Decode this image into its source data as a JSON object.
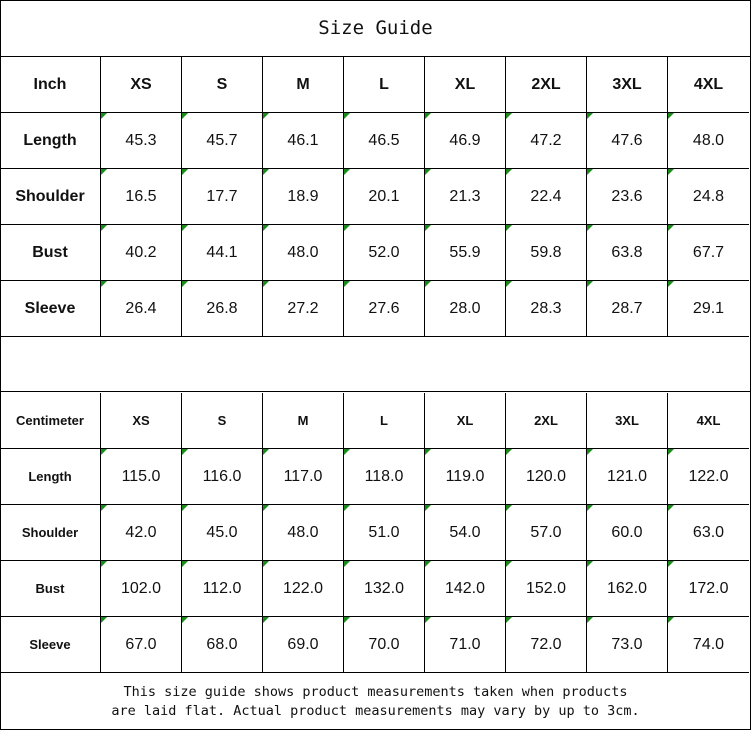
{
  "title": "Size Guide",
  "accent_color": "#1a8a1a",
  "inch_table": {
    "headers": [
      "Inch",
      "XS",
      "S",
      "M",
      "L",
      "XL",
      "2XL",
      "3XL",
      "4XL"
    ],
    "rows": [
      [
        "Length",
        "45.3",
        "45.7",
        "46.1",
        "46.5",
        "46.9",
        "47.2",
        "47.6",
        "48.0"
      ],
      [
        "Shoulder",
        "16.5",
        "17.7",
        "18.9",
        "20.1",
        "21.3",
        "22.4",
        "23.6",
        "24.8"
      ],
      [
        "Bust",
        "40.2",
        "44.1",
        "48.0",
        "52.0",
        "55.9",
        "59.8",
        "63.8",
        "67.7"
      ],
      [
        "Sleeve",
        "26.4",
        "26.8",
        "27.2",
        "27.6",
        "28.0",
        "28.3",
        "28.7",
        "29.1"
      ]
    ]
  },
  "cm_table": {
    "headers": [
      "Centimeter",
      "XS",
      "S",
      "M",
      "L",
      "XL",
      "2XL",
      "3XL",
      "4XL"
    ],
    "rows": [
      [
        "Length",
        "115.0",
        "116.0",
        "117.0",
        "118.0",
        "119.0",
        "120.0",
        "121.0",
        "122.0"
      ],
      [
        "Shoulder",
        "42.0",
        "45.0",
        "48.0",
        "51.0",
        "54.0",
        "57.0",
        "60.0",
        "63.0"
      ],
      [
        "Bust",
        "102.0",
        "112.0",
        "122.0",
        "132.0",
        "142.0",
        "152.0",
        "162.0",
        "172.0"
      ],
      [
        "Sleeve",
        "67.0",
        "68.0",
        "69.0",
        "70.0",
        "71.0",
        "72.0",
        "73.0",
        "74.0"
      ]
    ]
  },
  "note": {
    "line1": "This size guide shows product measurements taken when products",
    "line2": "are laid flat. Actual product measurements may vary by up to 3cm."
  }
}
